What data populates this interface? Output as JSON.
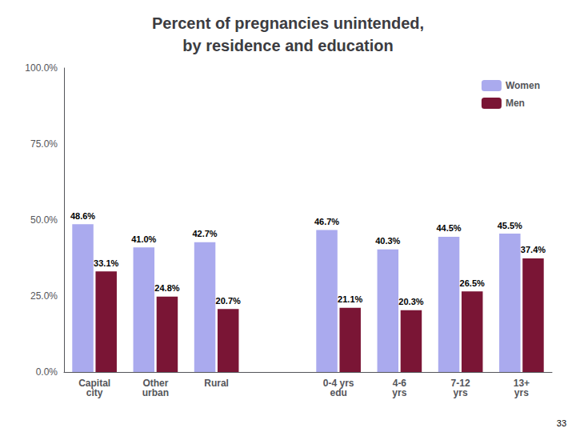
{
  "chart_data": {
    "type": "bar",
    "title": "Percent of pregnancies unintended,\nby residence and education",
    "categories": [
      "Capital\ncity",
      "Other\nurban",
      "Rural",
      null,
      "0-4 yrs\nedu",
      "4-6\nyrs",
      "7-12\nyrs",
      "13+\nyrs"
    ],
    "series": [
      {
        "name": "Women",
        "color": "#aaaaee",
        "values": [
          48.6,
          41.0,
          42.7,
          null,
          46.7,
          40.3,
          44.5,
          45.5
        ],
        "value_labels": [
          "48.6%",
          "41.0%",
          "42.7%",
          null,
          "46.7%",
          "40.3%",
          "44.5%",
          "45.5%"
        ]
      },
      {
        "name": "Men",
        "color": "#7a1535",
        "values": [
          33.1,
          24.8,
          20.7,
          null,
          21.1,
          20.3,
          26.5,
          37.4
        ],
        "value_labels": [
          "33.1%",
          "24.8%",
          "20.7%",
          null,
          "21.1%",
          "20.3%",
          "26.5%",
          "37.4%"
        ]
      }
    ],
    "ylim": [
      0,
      100
    ],
    "yticks": [
      {
        "value": 0,
        "label": "0.0%"
      },
      {
        "value": 25,
        "label": "25.0%"
      },
      {
        "value": 50,
        "label": "50.0%"
      },
      {
        "value": 75,
        "label": "75.0%"
      },
      {
        "value": 100,
        "label": "100.0%"
      }
    ],
    "data_labels": true,
    "grid": false,
    "legend": "upper right",
    "annotations": [
      "33"
    ]
  }
}
